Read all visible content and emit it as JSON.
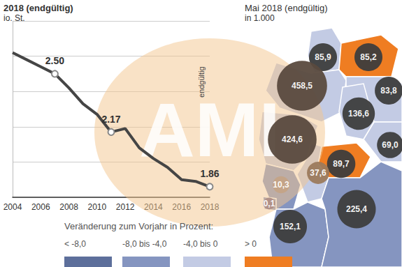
{
  "chart_data": [
    {
      "type": "line",
      "title": "2018 (endgültig)",
      "subtitle": "io. St.",
      "x": [
        2004,
        2005,
        2006,
        2007,
        2008,
        2009,
        2010,
        2011,
        2012,
        2013,
        2014,
        2015,
        2016,
        2017,
        2018
      ],
      "values": [
        2.62,
        2.58,
        2.54,
        2.5,
        2.42,
        2.33,
        2.27,
        2.17,
        2.19,
        2.08,
        2.02,
        1.97,
        1.9,
        1.89,
        1.86
      ],
      "value_labels": [
        null,
        null,
        null,
        "2.50",
        null,
        null,
        null,
        "2.17",
        null,
        null,
        null,
        null,
        null,
        null,
        "1.86"
      ],
      "color": "#454545",
      "xlim": [
        2004,
        2018
      ],
      "xticks": [
        2004,
        2006,
        2008,
        2010,
        2012,
        2014,
        2016,
        2018
      ],
      "ylim": [
        1.8,
        2.8
      ],
      "yticks": [
        1.8,
        2.0,
        2.2,
        2.4,
        2.6,
        2.8
      ],
      "grid": true,
      "tick_labels": "x",
      "data_labels": true,
      "annotations": [
        "endgültig",
        "AMI"
      ]
    },
    {
      "type": "bubble",
      "title": "Mai 2018 (endgültig)",
      "subtitle": "in 1.000",
      "values": [
        85.9,
        85.2,
        458.5,
        83.8,
        136.6,
        424.6,
        89.7,
        69.0,
        37.6,
        10.3,
        0.1,
        152.1,
        225.4
      ],
      "value_labels": [
        "85,9",
        "85,2",
        "458,5",
        "83,8",
        "136,6",
        "424,6",
        "89,7",
        "69,0",
        "37,6",
        "10,3",
        "0,1",
        "152,1",
        "225,4"
      ],
      "colors": [
        "#3d3d3d",
        "#3d3d3d",
        "#5a4a3e",
        "#3d3d3d",
        "#3d3d3d",
        "#5a4a3e",
        "#3d3d3d",
        "#3d3d3d",
        "#9c7a5c",
        "#c4a386",
        "#b08f86",
        "#3d3d3d",
        "#3d3d3d"
      ],
      "change_class": [
        2,
        3,
        2,
        2,
        2,
        2,
        3,
        2,
        2,
        1,
        1,
        1,
        1
      ],
      "data_labels": true,
      "legend_title": "Veränderung zum Vorjahr in Prozent:",
      "legend_items": [
        {
          "label": "< -8,0",
          "color": "#5d6f9b"
        },
        {
          "label": "-8,0 bis -4,0",
          "color": "#8595c0"
        },
        {
          "label": "-4,0 bis 0",
          "color": "#c3cbe4"
        },
        {
          "label": "> 0",
          "color": "#ef7d22"
        }
      ]
    }
  ]
}
